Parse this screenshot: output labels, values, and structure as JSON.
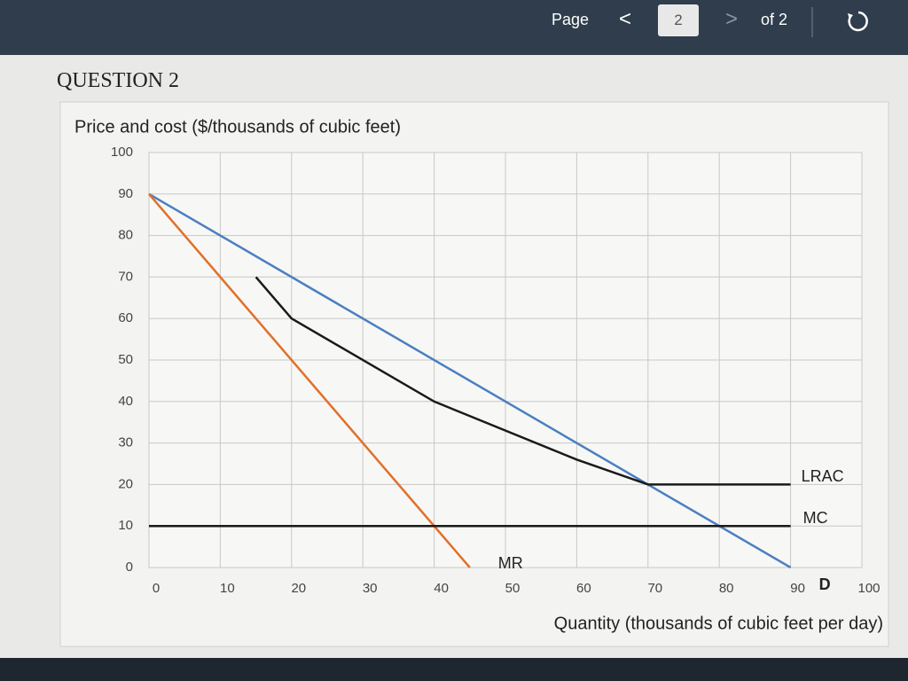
{
  "toolbar": {
    "page_label": "Page",
    "current_page": "2",
    "page_count": "of 2"
  },
  "question": "QUESTION 2",
  "chart_data": {
    "type": "line",
    "y_label": "Price and cost ($/thousands of cubic feet)",
    "x_label": "Quantity  (thousands of cubic feet per day)",
    "xlim": [
      0,
      100
    ],
    "ylim": [
      0,
      100
    ],
    "xticks": [
      0,
      10,
      20,
      30,
      40,
      50,
      60,
      70,
      80,
      90,
      100
    ],
    "yticks": [
      0,
      10,
      20,
      30,
      40,
      50,
      60,
      70,
      80,
      90,
      100
    ],
    "grid": true,
    "series": [
      {
        "name": "D",
        "color": "#4a7fc1",
        "x": [
          0,
          90
        ],
        "values": [
          90,
          0
        ]
      },
      {
        "name": "MR",
        "color": "#e0702a",
        "x": [
          0,
          45
        ],
        "values": [
          90,
          0
        ]
      },
      {
        "name": "LRAC",
        "color": "#1a1a1a",
        "x": [
          15,
          20,
          40,
          60,
          70,
          90
        ],
        "values": [
          70,
          60,
          40,
          26,
          20,
          20
        ]
      },
      {
        "name": "MC",
        "color": "#1a1a1a",
        "x": [
          0,
          90
        ],
        "values": [
          10,
          10
        ]
      }
    ]
  }
}
